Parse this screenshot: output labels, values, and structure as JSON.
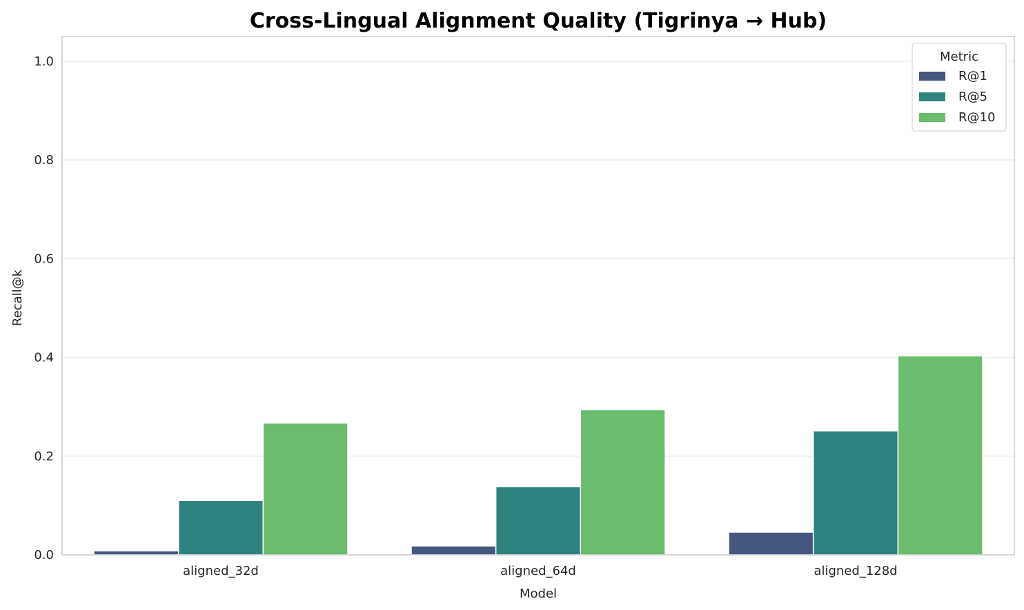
{
  "chart_data": {
    "type": "bar",
    "title": "Cross-Lingual Alignment Quality (Tigrinya → Hub)",
    "xlabel": "Model",
    "ylabel": "Recall@k",
    "ylim": [
      0,
      1.05
    ],
    "yticks": [
      "0.0",
      "0.2",
      "0.4",
      "0.6",
      "0.8",
      "1.0"
    ],
    "grid": true,
    "categories": [
      "aligned_32d",
      "aligned_64d",
      "aligned_128d"
    ],
    "legend": {
      "title": "Metric",
      "placement": "top-right"
    },
    "series": [
      {
        "name": "R@1",
        "color": "#45567f",
        "values": [
          0.008,
          0.018,
          0.046
        ]
      },
      {
        "name": "R@5",
        "color": "#2e837e",
        "values": [
          0.11,
          0.138,
          0.251
        ]
      },
      {
        "name": "R@10",
        "color": "#6bbd6d",
        "values": [
          0.267,
          0.294,
          0.403
        ]
      }
    ]
  }
}
